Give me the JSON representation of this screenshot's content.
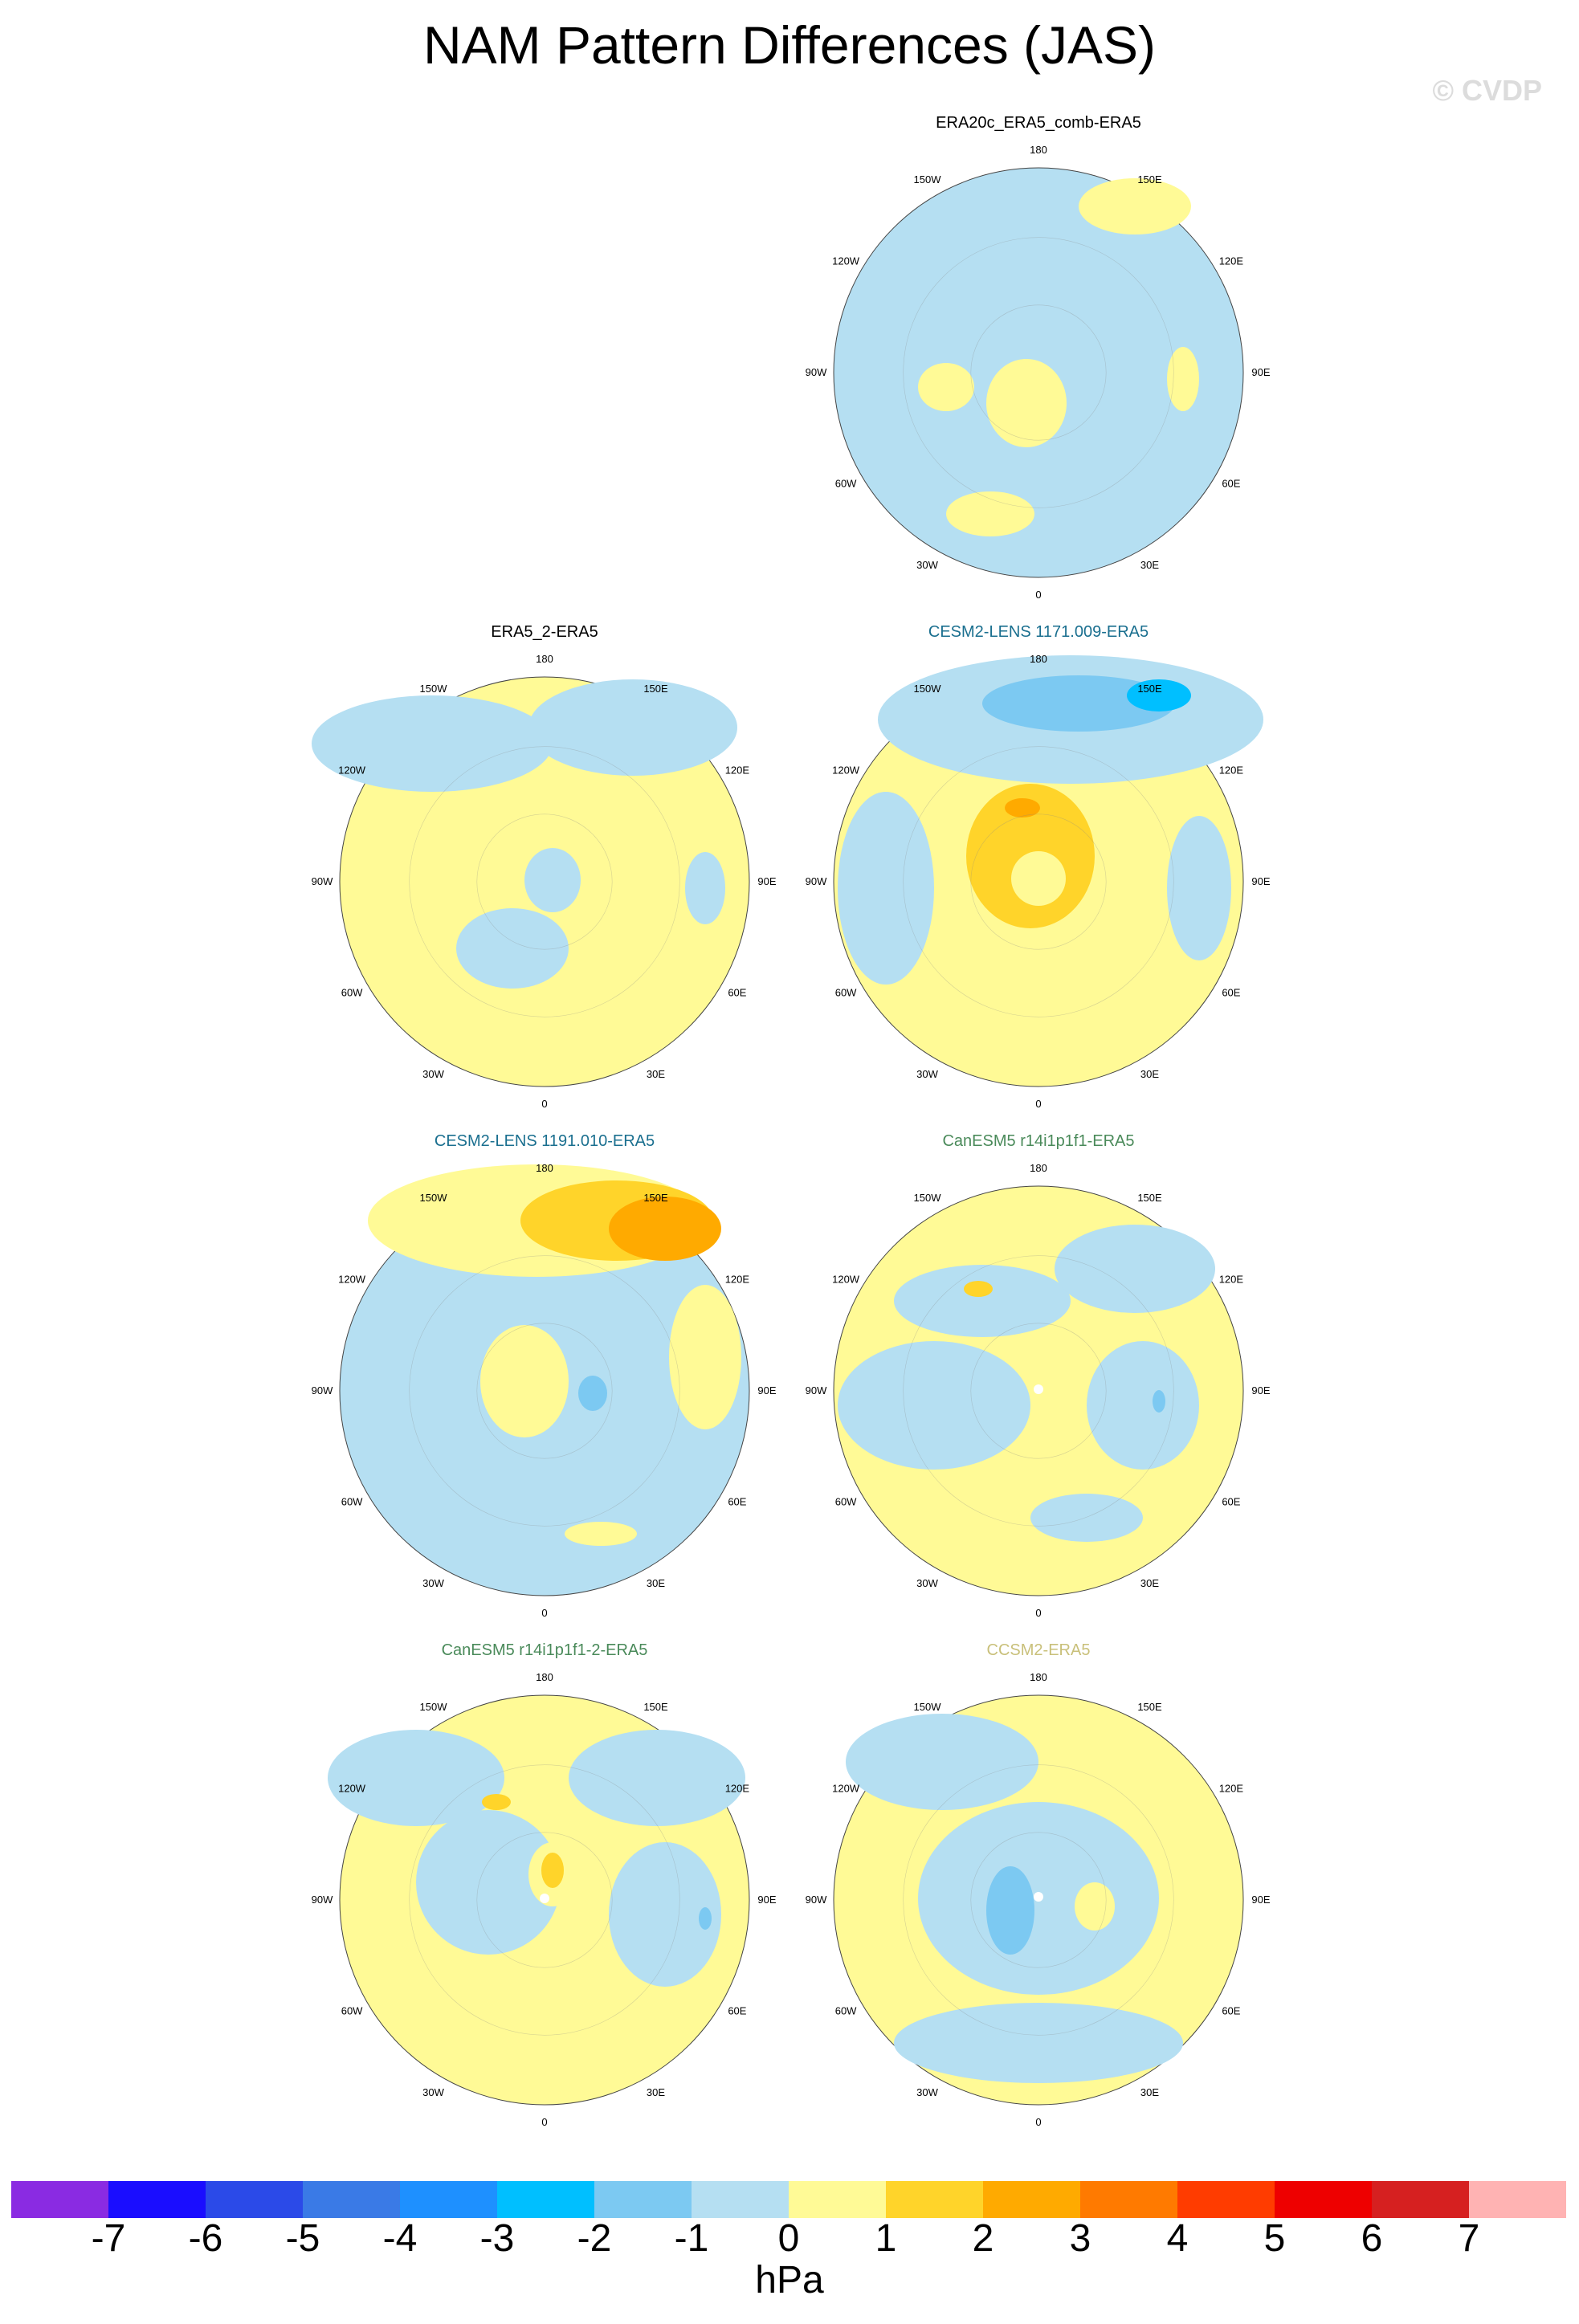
{
  "title": "NAM Pattern Differences (JAS)",
  "watermark": "© CVDP",
  "units": "hPa",
  "lon_labels": {
    "top": "180",
    "bottom": "0",
    "left": "90W",
    "right": "90E",
    "upper_left": "120W",
    "upper_right": "120E",
    "top_left": "150W",
    "top_right": "150E",
    "lower_left": "60W",
    "lower_right": "60E",
    "bottom_left": "30W",
    "bottom_right": "30E"
  },
  "panels": [
    {
      "id": "p1",
      "title": "ERA20c_ERA5_comb-ERA5",
      "title_color": "#000000",
      "background": "#b5dff2"
    },
    {
      "id": "p2",
      "title": "ERA5_2-ERA5",
      "title_color": "#000000",
      "background": "#fffa96"
    },
    {
      "id": "p3",
      "title": "CESM2-LENS 1171.009-ERA5",
      "title_color": "#1a6f8f",
      "background": "#fffa96"
    },
    {
      "id": "p4",
      "title": "CESM2-LENS 1191.010-ERA5",
      "title_color": "#1a6f8f",
      "background": "#b5dff2"
    },
    {
      "id": "p5",
      "title": "CanESM5 r14i1p1f1-ERA5",
      "title_color": "#4a8a5a",
      "background": "#fffa96"
    },
    {
      "id": "p6",
      "title": "CanESM5 r14i1p1f1-2-ERA5",
      "title_color": "#4a8a5a",
      "background": "#fffa96"
    },
    {
      "id": "p7",
      "title": "CCSM2-ERA5",
      "title_color": "#c9c07a",
      "background": "#fffa96"
    }
  ],
  "colorbar": {
    "colors": [
      "#8a2be2",
      "#1a0dff",
      "#2b4ae8",
      "#3a7ae6",
      "#1e90ff",
      "#00bfff",
      "#7cc9f2",
      "#b5dff2",
      "#fffa96",
      "#ffd42a",
      "#ffaa00",
      "#ff7a00",
      "#ff3c00",
      "#ee0000",
      "#d62020",
      "#ffb3b3"
    ],
    "labels": [
      "-7",
      "-6",
      "-5",
      "-4",
      "-3",
      "-2",
      "-1",
      "0",
      "1",
      "2",
      "3",
      "4",
      "5",
      "6",
      "7"
    ]
  }
}
